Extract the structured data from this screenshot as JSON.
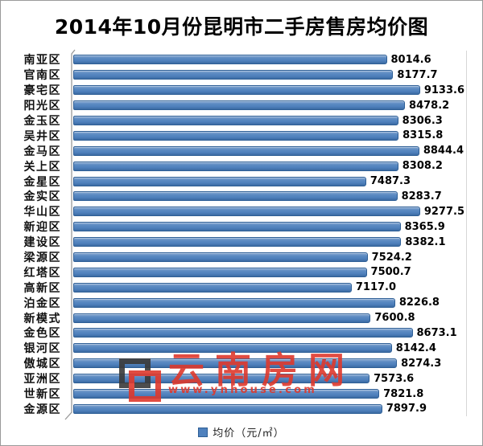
{
  "title": "2014年10月份昆明市二手房售房均价图",
  "legend": {
    "label": "均价（元/㎡）"
  },
  "watermark": {
    "brand": "云南房网",
    "url": "www.ynhouse.com"
  },
  "colors": {
    "bar_fill": "#4F81BD",
    "bar_border": "#2E5F96",
    "watermark_red": "#DE392D",
    "logo_dark": "#3A3A3A",
    "axis_gray": "#999999"
  },
  "chart_data": {
    "type": "bar",
    "orientation": "horizontal",
    "title": "2014年10月份昆明市二手房售房均价图",
    "categories": [
      "南亚区",
      "官南区",
      "豪宅区",
      "阳光区",
      "金玉区",
      "吴井区",
      "金马区",
      "关上区",
      "金星区",
      "金实区",
      "华山区",
      "新迎区",
      "建设区",
      "梁源区",
      "红塔区",
      "高新区",
      "泊金区",
      "新模式",
      "金色区",
      "银河区",
      "傲城区",
      "亚洲区",
      "世新区",
      "金源区"
    ],
    "values": [
      8014.6,
      8177.7,
      9133.6,
      8478.2,
      8306.3,
      8315.8,
      8844.4,
      8308.2,
      7487.3,
      8283.7,
      9277.5,
      8365.9,
      8382.1,
      7524.2,
      7500.7,
      7117.0,
      8226.8,
      7600.8,
      8673.1,
      8142.4,
      8274.3,
      7573.6,
      7821.8,
      7897.9
    ],
    "value_labels": [
      "8014.6",
      "8177.7",
      "9133.6",
      "8478.2",
      "8306.3",
      "8315.8",
      "8844.4",
      "8308.2",
      "7487.3",
      "8283.7",
      "9277.5",
      "8365.9",
      "8382.1",
      "7524.2",
      "7500.7",
      "7117.0",
      "8226.8",
      "7600.8",
      "8673.1",
      "8142.4",
      "8274.3",
      "7573.6",
      "7821.8",
      "7897.9"
    ],
    "xlim": [
      0,
      10000
    ],
    "xlabel": "",
    "ylabel": "",
    "grid": false,
    "legend_entries": [
      "均价（元/㎡）"
    ],
    "legend_position": "bottom",
    "data_labels": true
  }
}
